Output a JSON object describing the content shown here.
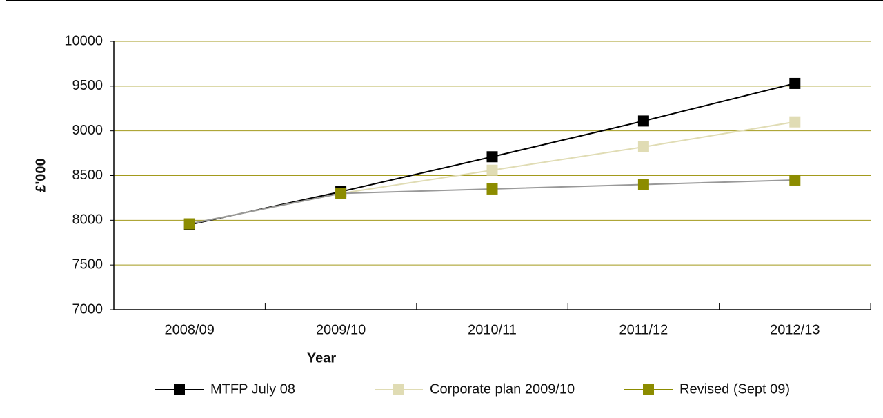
{
  "chart_data": {
    "type": "line",
    "x_label": "Year",
    "y_label": "£'000",
    "categories": [
      "2008/09",
      "2009/10",
      "2010/11",
      "2011/12",
      "2012/13"
    ],
    "series": [
      {
        "name": "MTFP July 08",
        "color": "#000000",
        "values": [
          7950,
          8320,
          8710,
          9110,
          9530
        ]
      },
      {
        "name": "Corporate plan 2009/10",
        "color": "#e0dcb4",
        "values": [
          7960,
          8300,
          8560,
          8820,
          9100
        ]
      },
      {
        "name": "Revised (Sept 09)",
        "color": "#8c8c00",
        "line_color": "#999999",
        "values": [
          7960,
          8300,
          8350,
          8400,
          8450
        ]
      }
    ],
    "ylim": [
      7000,
      10000
    ],
    "yticks": [
      7000,
      7500,
      8000,
      8500,
      9000,
      9500,
      10000
    ],
    "grid": true,
    "grid_color": "#a39a1c",
    "legend": "bottom"
  }
}
